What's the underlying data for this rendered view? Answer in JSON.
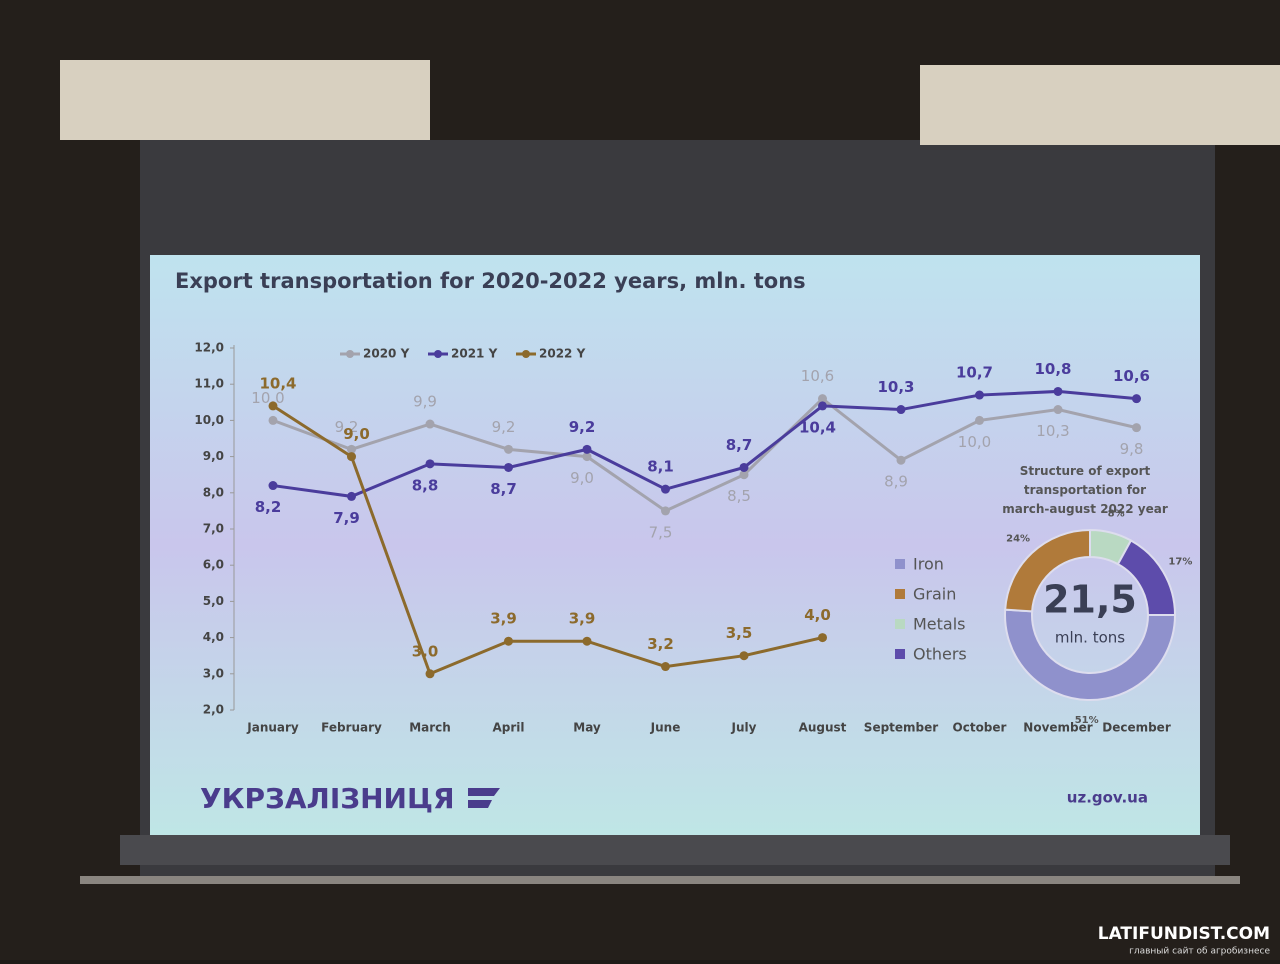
{
  "chart_data": [
    {
      "type": "line",
      "title": "Export transportation for 2020-2022 years, mln. tons",
      "categories": [
        "January",
        "February",
        "March",
        "April",
        "May",
        "June",
        "July",
        "August",
        "September",
        "October",
        "November",
        "December"
      ],
      "series": [
        {
          "name": "2020 Y",
          "color": "#a3a3ad",
          "values": [
            10.0,
            9.2,
            9.9,
            9.2,
            9.0,
            7.5,
            8.5,
            10.6,
            8.9,
            10.0,
            10.3,
            9.8
          ],
          "value_labels": [
            "10,0",
            "9,2",
            "9,9",
            "9,2",
            "9,0",
            "7,5",
            "8,5",
            "10,6",
            "8,9",
            "10,0",
            "10,3",
            "9,8"
          ]
        },
        {
          "name": "2021 Y",
          "color": "#4a3c9c",
          "values": [
            8.2,
            7.9,
            8.8,
            8.7,
            9.2,
            8.1,
            8.7,
            10.4,
            10.3,
            10.7,
            10.8,
            10.6
          ],
          "value_labels": [
            "8,2",
            "7,9",
            "8,8",
            "8,7",
            "9,2",
            "8,1",
            "8,7",
            "10,4",
            "10,3",
            "10,7",
            "10,8",
            "10,6"
          ]
        },
        {
          "name": "2022 Y",
          "color": "#8c6a2c",
          "values": [
            10.4,
            9.0,
            3.0,
            3.9,
            3.9,
            3.2,
            3.5,
            4.0,
            null,
            null,
            null,
            null
          ],
          "value_labels": [
            "10,4",
            "9,0",
            "3,0",
            "3,9",
            "3,9",
            "3,2",
            "3,5",
            "4,0",
            null,
            null,
            null,
            null
          ]
        }
      ],
      "ylim": [
        2,
        12
      ],
      "yticks": [
        {
          "value": 2,
          "label": "2,0"
        },
        {
          "value": 3,
          "label": "3,0"
        },
        {
          "value": 4,
          "label": "4,0"
        },
        {
          "value": 5,
          "label": "5,0"
        },
        {
          "value": 6,
          "label": "6,0"
        },
        {
          "value": 7,
          "label": "7,0"
        },
        {
          "value": 8,
          "label": "8,0"
        },
        {
          "value": 9,
          "label": "9,0"
        },
        {
          "value": 10,
          "label": "10,0"
        },
        {
          "value": 11,
          "label": "11,0"
        },
        {
          "value": 12,
          "label": "12,0"
        }
      ],
      "legend": "top-left"
    },
    {
      "type": "pie",
      "title": "Structure of export transportation for march-august 2022 year",
      "categories": [
        "Iron",
        "Grain",
        "Metals",
        "Others"
      ],
      "values": [
        51,
        24,
        8,
        17
      ],
      "value_labels": [
        "51%",
        "24%",
        "8%",
        "17%"
      ],
      "colors": [
        "#8f91cc",
        "#b07a3a",
        "#b9d9c2",
        "#5d4cab"
      ],
      "center_label": "21,5",
      "center_sublabel": "mln. tons",
      "donut": true
    }
  ],
  "footer": {
    "logo": "УКРЗАЛІЗНИЦЯ",
    "url": "uz.gov.ua"
  },
  "watermark": {
    "name": "LATIFUNDIST.COM",
    "tagline": "главный сайт об агробизнесе"
  }
}
